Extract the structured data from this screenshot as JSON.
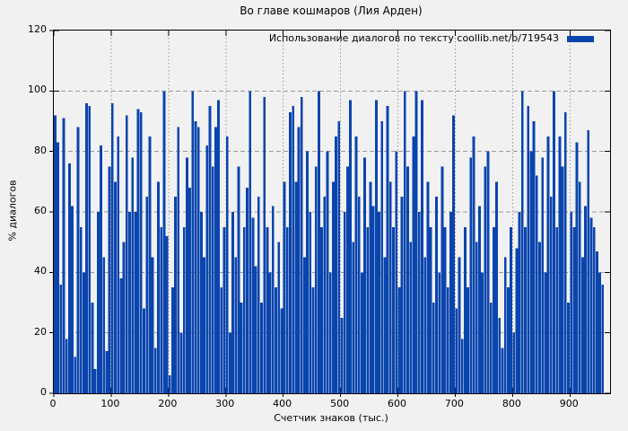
{
  "title": "Во главе кошмаров (Лия Арден)",
  "legend": {
    "label": "Использование диалогов по тексту coollib.net/b/719543"
  },
  "axes": {
    "x_label": "Счетчик знаков (тыс.)",
    "y_label": "% диалогов"
  },
  "colors": {
    "bar": "#0a45ad",
    "grid": "#9a9a9a",
    "border": "#000000",
    "background": "#f1f1f1",
    "text": "#000000"
  },
  "chart_data": {
    "type": "bar",
    "title": "Во главе кошмаров (Лия Арден)",
    "series_label": "Использование диалогов по тексту coollib.net/b/719543",
    "xlabel": "Счетчик знаков (тыс.)",
    "ylabel": "% диалогов",
    "xlim": [
      0,
      970
    ],
    "ylim": [
      0,
      120
    ],
    "x_ticks": [
      0,
      100,
      200,
      300,
      400,
      500,
      600,
      700,
      800,
      900
    ],
    "y_ticks": [
      0,
      20,
      40,
      60,
      80,
      100,
      120
    ],
    "grid": true,
    "legend_position": "top-right",
    "x_start": 0,
    "x_step": 5,
    "values": [
      92,
      83,
      36,
      91,
      18,
      76,
      62,
      12,
      88,
      55,
      40,
      96,
      95,
      30,
      8,
      60,
      82,
      45,
      14,
      75,
      96,
      70,
      85,
      38,
      50,
      92,
      60,
      78,
      60,
      94,
      93,
      28,
      65,
      85,
      45,
      15,
      70,
      55,
      100,
      52,
      6,
      35,
      65,
      88,
      20,
      55,
      78,
      68,
      100,
      90,
      88,
      60,
      45,
      82,
      95,
      75,
      88,
      97,
      35,
      55,
      85,
      20,
      60,
      45,
      75,
      30,
      55,
      68,
      100,
      58,
      42,
      65,
      30,
      98,
      55,
      40,
      62,
      35,
      50,
      28,
      70,
      55,
      93,
      95,
      70,
      88,
      98,
      45,
      80,
      60,
      35,
      75,
      100,
      55,
      65,
      80,
      40,
      70,
      85,
      90,
      25,
      60,
      75,
      97,
      50,
      85,
      65,
      40,
      78,
      55,
      70,
      62,
      97,
      60,
      90,
      45,
      95,
      70,
      55,
      80,
      35,
      65,
      100,
      75,
      50,
      85,
      100,
      60,
      97,
      45,
      70,
      55,
      30,
      65,
      40,
      75,
      55,
      35,
      60,
      92,
      28,
      45,
      18,
      55,
      35,
      78,
      85,
      50,
      62,
      40,
      75,
      80,
      30,
      55,
      70,
      25,
      15,
      45,
      35,
      55,
      20,
      48,
      60,
      100,
      55,
      95,
      80,
      90,
      72,
      50,
      78,
      40,
      85,
      65,
      100,
      55,
      85,
      75,
      93,
      30,
      60,
      55,
      83,
      70,
      45,
      62,
      87,
      58,
      55,
      47,
      40,
      36
    ]
  }
}
